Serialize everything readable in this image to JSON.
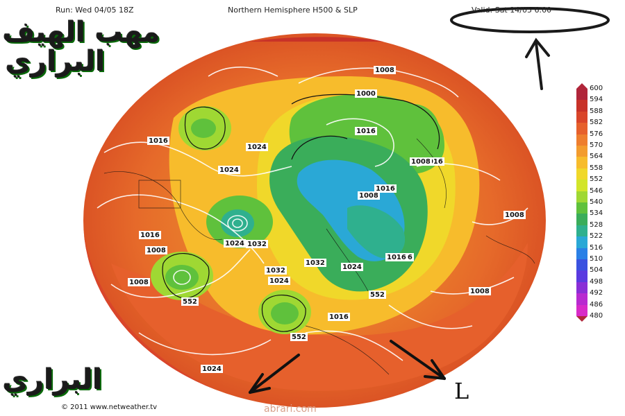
{
  "header": {
    "run": "Run: Wed 04/05 18Z",
    "title": "Northern Hemisphere H500 & SLP",
    "valid": "Valid: Sat 14/05 6:00"
  },
  "overlay": {
    "arabic_line1": "مهب الهيف",
    "arabic_line2": "البراري",
    "arabic_bottom": "البراري",
    "credit": "© 2011 www.netweather.tv",
    "watermark": "abrari.com",
    "low_marker": "L"
  },
  "colorbar": {
    "labels": [
      "600",
      "594",
      "588",
      "582",
      "576",
      "570",
      "564",
      "558",
      "552",
      "546",
      "540",
      "534",
      "528",
      "522",
      "516",
      "510",
      "504",
      "498",
      "492",
      "486",
      "480"
    ],
    "colors": [
      "#b0253a",
      "#c83228",
      "#d9452a",
      "#e6602c",
      "#ee7e2e",
      "#f39c2e",
      "#f7bc2c",
      "#f0d82a",
      "#d2e52a",
      "#9fd833",
      "#5fc13c",
      "#3aad5a",
      "#2fb08e",
      "#2aa8d6",
      "#2a80e6",
      "#3a52e0",
      "#5a3ae0",
      "#8a2ed6",
      "#b82ad0",
      "#d82ac8",
      "#e85ad8"
    ]
  },
  "isobar_labels": [
    "1008",
    "1000",
    "1016",
    "1016",
    "1024",
    "1024",
    "1016",
    "1008",
    "1016",
    "1008",
    "1016",
    "1024",
    "1032",
    "1008",
    "1016",
    "1032",
    "1024",
    "1008",
    "1032",
    "1024",
    "1016",
    "1008",
    "552",
    "552",
    "552",
    "1024",
    "1016",
    "1008"
  ]
}
